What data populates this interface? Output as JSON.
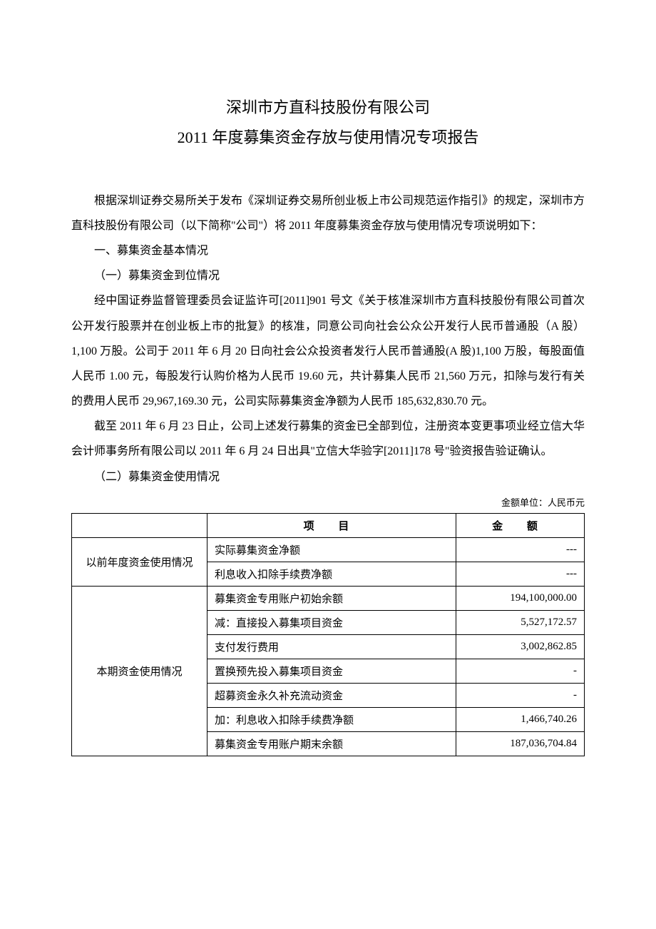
{
  "title": {
    "line1": "深圳市方直科技股份有限公司",
    "line2": "2011 年度募集资金存放与使用情况专项报告"
  },
  "paragraphs": {
    "intro": "根据深圳证券交易所关于发布《深圳证券交易所创业板上市公司规范运作指引》的规定，深圳市方直科技股份有限公司（以下简称\"公司\"）将 2011 年度募集资金存放与使用情况专项说明如下：",
    "h1": "一、募集资金基本情况",
    "h1_1": "（一）募集资金到位情况",
    "p1": "经中国证券监督管理委员会证监许可[2011]901 号文《关于核准深圳市方直科技股份有限公司首次公开发行股票并在创业板上市的批复》的核准，同意公司向社会公众公开发行人民币普通股（A 股）1,100 万股。公司于 2011 年 6 月 20 日向社会公众投资者发行人民币普通股(A 股)1,100 万股，每股面值人民币 1.00 元，每股发行认购价格为人民币 19.60 元，共计募集人民币 21,560 万元，扣除与发行有关的费用人民币 29,967,169.30 元，公司实际募集资金净额为人民币 185,632,830.70 元。",
    "p2": "截至 2011 年 6 月 23 日止，公司上述发行募集的资金已全部到位，注册资本变更事项业经立信大华会计师事务所有限公司以 2011 年 6 月 24 日出具\"立信大华验字[2011]178 号\"验资报告验证确认。",
    "h1_2": "（二）募集资金使用情况"
  },
  "table": {
    "unit_caption": "金额单位：人民币元",
    "header": {
      "item": "项 目",
      "amount": "金 额"
    },
    "groups": [
      {
        "category": "以前年度资金使用情况",
        "rows": [
          {
            "item": "实际募集资金净额",
            "amount": "---"
          },
          {
            "item": "利息收入扣除手续费净额",
            "amount": "---"
          }
        ]
      },
      {
        "category": "本期资金使用情况",
        "rows": [
          {
            "item": "募集资金专用账户初始余额",
            "amount": "194,100,000.00"
          },
          {
            "item": "减：直接投入募集项目资金",
            "amount": "5,527,172.57"
          },
          {
            "item": "支付发行费用",
            "amount": "3,002,862.85"
          },
          {
            "item": "置换预先投入募集项目资金",
            "amount": "-"
          },
          {
            "item": "超募资金永久补充流动资金",
            "amount": "-"
          },
          {
            "item": "加：利息收入扣除手续费净额",
            "amount": "1,466,740.26"
          },
          {
            "item": "募集资金专用账户期末余额",
            "amount": "187,036,704.84"
          }
        ]
      }
    ]
  },
  "styles": {
    "text_color": "#000000",
    "background_color": "#ffffff",
    "border_color": "#000000",
    "title_fontsize": 22,
    "body_fontsize": 16,
    "table_fontsize": 15,
    "caption_fontsize": 13,
    "font_family": "SimSun"
  }
}
